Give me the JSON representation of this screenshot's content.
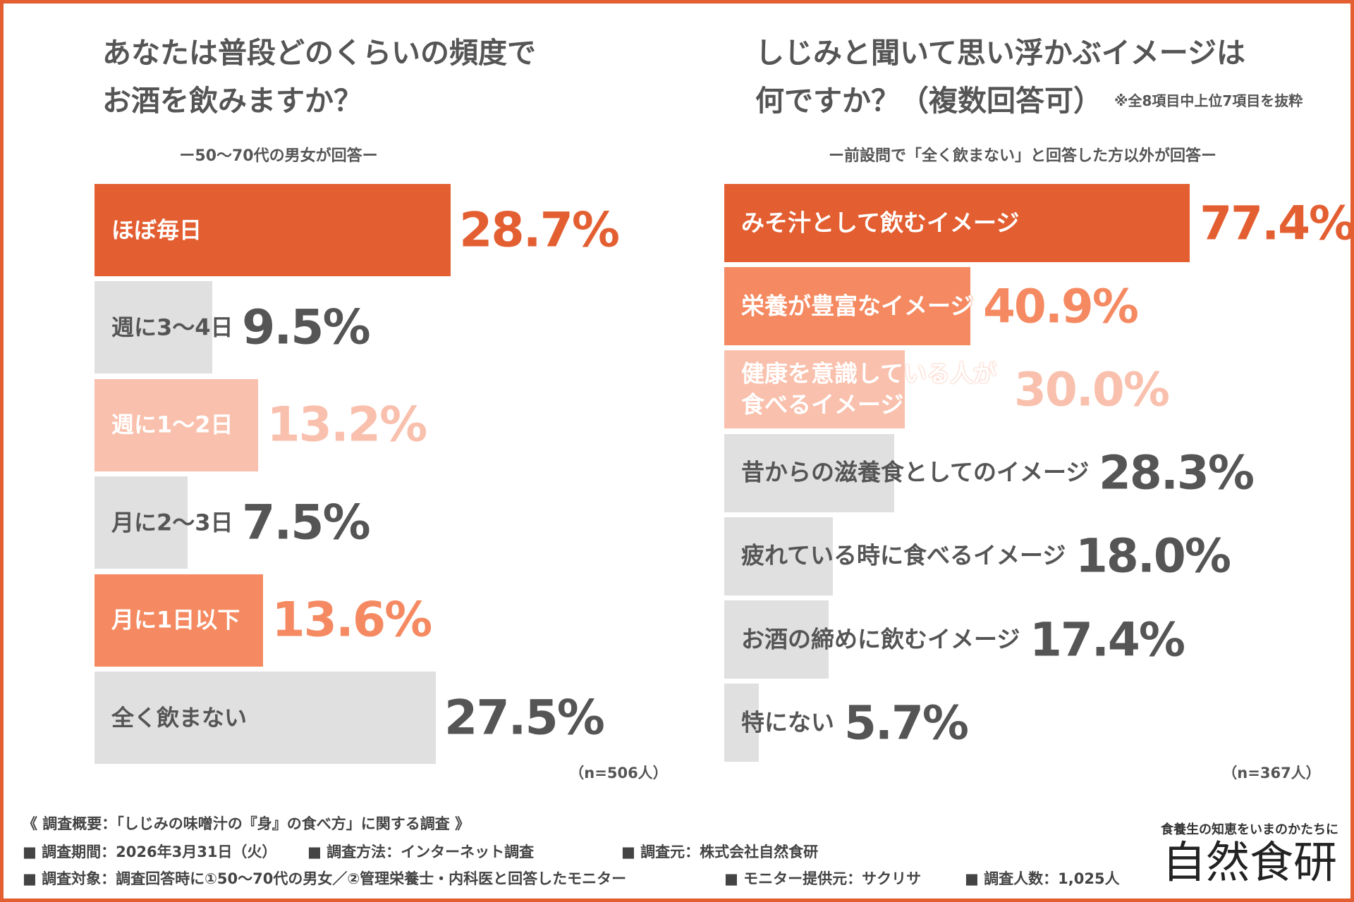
{
  "chart_data": [
    {
      "type": "bar",
      "orientation": "horizontal",
      "title": "あなたは普段どのくらいの頻度でお酒を飲みますか？",
      "subtitle": "ー50〜70代の男女が回答ー",
      "categories": [
        "ほぼ毎日",
        "週に3〜4日",
        "週に1〜2日",
        "月に2〜3日",
        "月に1日以下",
        "全く飲まない"
      ],
      "values": [
        28.7,
        9.5,
        13.2,
        7.5,
        13.6,
        27.5
      ],
      "value_labels": [
        "28.7%",
        "9.5%",
        "13.2%",
        "7.5%",
        "13.6%",
        "27.5%"
      ],
      "colors": [
        "#e35f32",
        "#e0e0e0",
        "#f9c0ad",
        "#e0e0e0",
        "#f58a62",
        "#e0e0e0"
      ],
      "label_colors": [
        "#ffffff",
        "#555555",
        "#ffffff",
        "#555555",
        "#ffffff",
        "#555555"
      ],
      "value_colors": [
        "#e35f32",
        "#555555",
        "#f9c0ad",
        "#555555",
        "#f58a62",
        "#555555"
      ],
      "note": "（n=506人）"
    },
    {
      "type": "bar",
      "orientation": "horizontal",
      "title": "しじみと聞いて思い浮かぶイメージは何ですか？（複数回答可）",
      "title_note": "※全8項目中上位7項目を抜粋",
      "subtitle": "ー前設問で「全く飲まない」と回答した方以外が回答ー",
      "categories": [
        "みそ汁として飲むイメージ",
        "栄養が豊富なイメージ",
        "健康を意識している人が食べるイメージ",
        "昔からの滋養食としてのイメージ",
        "疲れている時に食べるイメージ",
        "お酒の締めに飲むイメージ",
        "特にない"
      ],
      "values": [
        77.4,
        40.9,
        30.0,
        28.3,
        18.0,
        17.4,
        5.7
      ],
      "value_labels": [
        "77.4%",
        "40.9%",
        "30.0%",
        "28.3%",
        "18.0%",
        "17.4%",
        "5.7%"
      ],
      "colors": [
        "#e35f32",
        "#f58a62",
        "#f9c0ad",
        "#e0e0e0",
        "#e0e0e0",
        "#e0e0e0",
        "#e0e0e0"
      ],
      "label_colors": [
        "#ffffff",
        "#ffffff",
        "#ffffff",
        "#555555",
        "#555555",
        "#555555",
        "#555555"
      ],
      "value_colors": [
        "#e35f32",
        "#f58a62",
        "#f9c0ad",
        "#555555",
        "#555555",
        "#555555",
        "#555555"
      ],
      "note": "（n=367人）"
    }
  ],
  "footer": {
    "heading": "《 調査概要：「しじみの味噌汁の『身』の食べ方」に関する調査 》",
    "lines": [
      [
        "■ 調査期間：2026年3月31日（火）",
        "■ 調査方法：インターネット調査",
        "■ 調査元：株式会社自然食研"
      ],
      [
        "■ 調査対象：調査回答時に①50〜70代の男女／②管理栄養士・内科医と回答したモニター",
        "■ モニター提供元：サクリサ",
        "■ 調査人数：1,025人"
      ]
    ]
  },
  "logo": {
    "tagline": "食養生の知恵をいまのかたちに",
    "name": "自然食研"
  }
}
